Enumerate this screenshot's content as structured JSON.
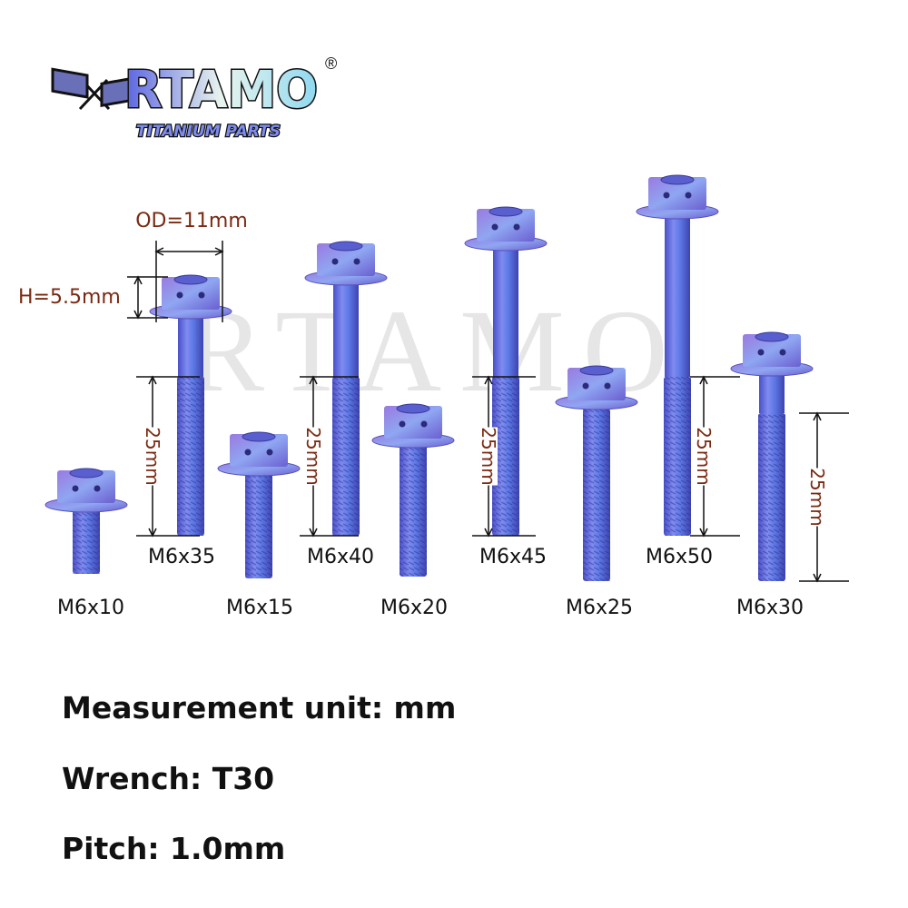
{
  "logo": {
    "brand": "RTAMO",
    "registered": "®",
    "tagline": "TITANIUM PARTS"
  },
  "watermark": "RTAMO",
  "dimensions": {
    "outer_diameter": "OD=11mm",
    "head_height": "H=5.5mm",
    "thread_length": "25mm"
  },
  "bolts": [
    {
      "label": "M6x10"
    },
    {
      "label": "M6x35"
    },
    {
      "label": "M6x15"
    },
    {
      "label": "M6x40"
    },
    {
      "label": "M6x20"
    },
    {
      "label": "M6x45"
    },
    {
      "label": "M6x25"
    },
    {
      "label": "M6x50"
    },
    {
      "label": "M6x30"
    }
  ],
  "specs": [
    "Measurement unit: mm",
    "Wrench: T30",
    "Pitch: 1.0mm"
  ],
  "colors": {
    "dimension_text": "#7a2a12",
    "bolt_blue": "#5b6ee0",
    "bolt_purple": "#8a6ad8"
  }
}
